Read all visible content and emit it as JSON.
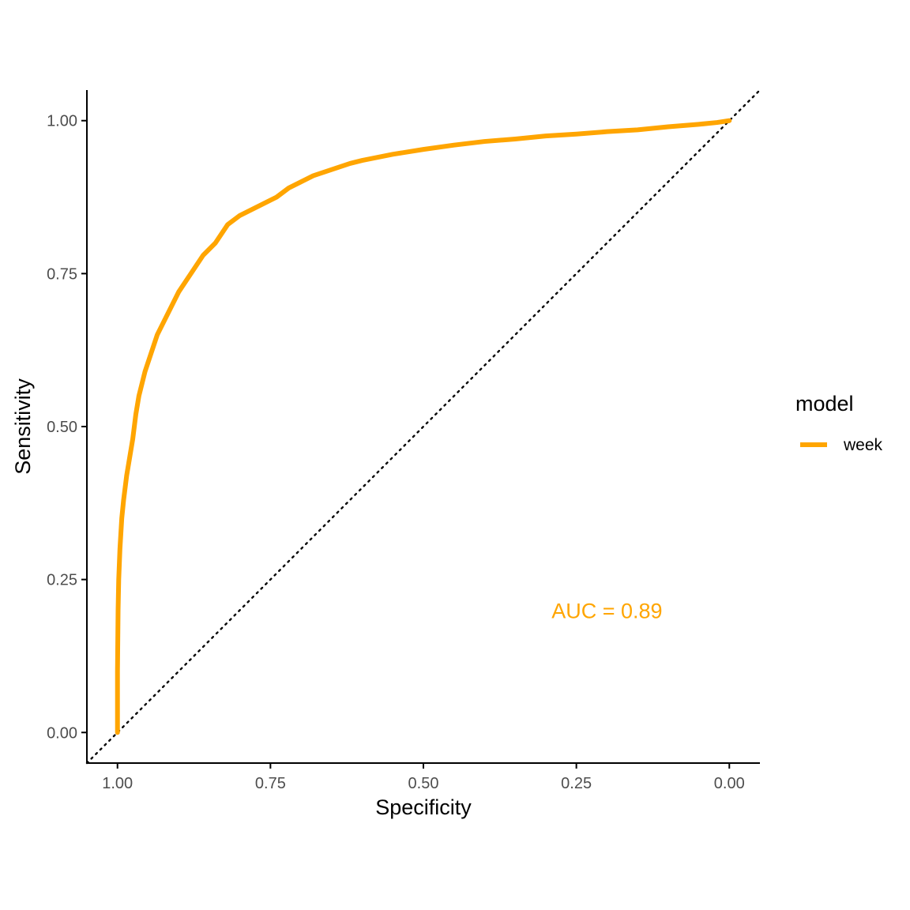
{
  "chart_data": {
    "type": "line",
    "xlabel": "Specificity",
    "ylabel": "Sensitivity",
    "x_reversed": true,
    "xlim": [
      1.05,
      -0.05
    ],
    "ylim": [
      -0.05,
      1.05
    ],
    "x_ticks": [
      "1.00",
      "0.75",
      "0.50",
      "0.25",
      "0.00"
    ],
    "y_ticks": [
      "0.00",
      "0.25",
      "0.50",
      "0.75",
      "1.00"
    ],
    "grid": false,
    "legend": {
      "title": "model",
      "position": "right",
      "items": [
        {
          "label": "week",
          "color": "#FFA500"
        }
      ]
    },
    "series": [
      {
        "name": "week",
        "color": "#FFA500",
        "specificity": [
          1.0,
          1.0,
          0.999,
          0.998,
          0.996,
          0.993,
          0.99,
          0.985,
          0.98,
          0.975,
          0.97,
          0.965,
          0.955,
          0.945,
          0.935,
          0.92,
          0.9,
          0.88,
          0.86,
          0.84,
          0.82,
          0.8,
          0.77,
          0.74,
          0.72,
          0.7,
          0.68,
          0.65,
          0.62,
          0.6,
          0.55,
          0.5,
          0.45,
          0.4,
          0.35,
          0.3,
          0.25,
          0.2,
          0.15,
          0.1,
          0.05,
          0.02,
          0.0
        ],
        "sensitivity": [
          0.0,
          0.1,
          0.2,
          0.25,
          0.3,
          0.35,
          0.38,
          0.42,
          0.45,
          0.48,
          0.52,
          0.55,
          0.59,
          0.62,
          0.65,
          0.68,
          0.72,
          0.75,
          0.78,
          0.8,
          0.83,
          0.845,
          0.86,
          0.875,
          0.89,
          0.9,
          0.91,
          0.92,
          0.93,
          0.935,
          0.945,
          0.953,
          0.96,
          0.966,
          0.97,
          0.975,
          0.978,
          0.982,
          0.985,
          0.99,
          0.994,
          0.997,
          1.0
        ]
      }
    ],
    "reference_line": {
      "style": "dotted",
      "color": "#000000",
      "from": [
        1.05,
        -0.05
      ],
      "to": [
        -0.05,
        1.05
      ]
    },
    "annotation": {
      "text": "AUC = 0.89",
      "x": 0.2,
      "y": 0.2,
      "color": "#FFA500"
    }
  }
}
